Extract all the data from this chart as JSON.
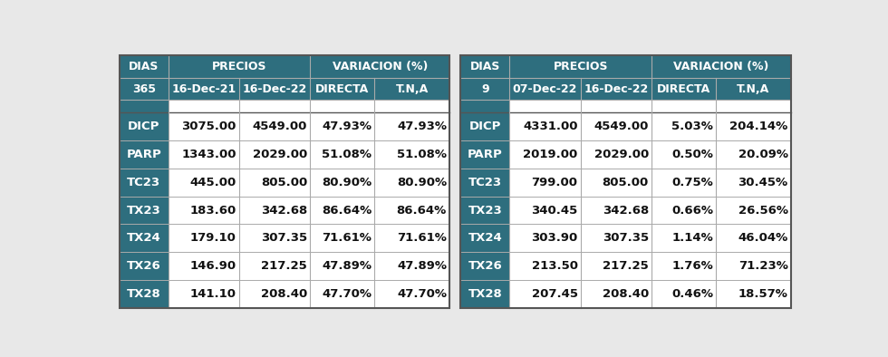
{
  "table1": {
    "header_row2": [
      "365",
      "16-Dec-21",
      "16-Dec-22",
      "DIRECTA",
      "T.N,A"
    ],
    "rows": [
      [
        "DICP",
        "3075.00",
        "4549.00",
        "47.93%",
        "47.93%"
      ],
      [
        "PARP",
        "1343.00",
        "2029.00",
        "51.08%",
        "51.08%"
      ],
      [
        "TC23",
        "445.00",
        "805.00",
        "80.90%",
        "80.90%"
      ],
      [
        "TX23",
        "183.60",
        "342.68",
        "86.64%",
        "86.64%"
      ],
      [
        "TX24",
        "179.10",
        "307.35",
        "71.61%",
        "71.61%"
      ],
      [
        "TX26",
        "146.90",
        "217.25",
        "47.89%",
        "47.89%"
      ],
      [
        "TX28",
        "141.10",
        "208.40",
        "47.70%",
        "47.70%"
      ]
    ]
  },
  "table2": {
    "header_row2": [
      "9",
      "07-Dec-22",
      "16-Dec-22",
      "DIRECTA",
      "T.N,A"
    ],
    "rows": [
      [
        "DICP",
        "4331.00",
        "4549.00",
        "5.03%",
        "204.14%"
      ],
      [
        "PARP",
        "2019.00",
        "2029.00",
        "0.50%",
        "20.09%"
      ],
      [
        "TC23",
        "799.00",
        "805.00",
        "0.75%",
        "30.45%"
      ],
      [
        "TX23",
        "340.45",
        "342.68",
        "0.66%",
        "26.56%"
      ],
      [
        "TX24",
        "303.90",
        "307.35",
        "1.14%",
        "46.04%"
      ],
      [
        "TX26",
        "213.50",
        "217.25",
        "1.76%",
        "71.23%"
      ],
      [
        "TX28",
        "207.45",
        "208.40",
        "0.46%",
        "18.57%"
      ]
    ]
  },
  "header_bg": "#2E6E7E",
  "header_text": "#FFFFFF",
  "row_label_bg": "#2E6E7E",
  "row_label_text": "#FFFFFF",
  "data_bg": "#FFFFFF",
  "data_text": "#111111",
  "page_bg": "#E8E8E8",
  "border_dark": "#555555",
  "border_light": "#AAAAAA",
  "col_props": [
    0.148,
    0.215,
    0.215,
    0.195,
    0.227
  ],
  "fs_header": 9.0,
  "fs_data": 9.5
}
